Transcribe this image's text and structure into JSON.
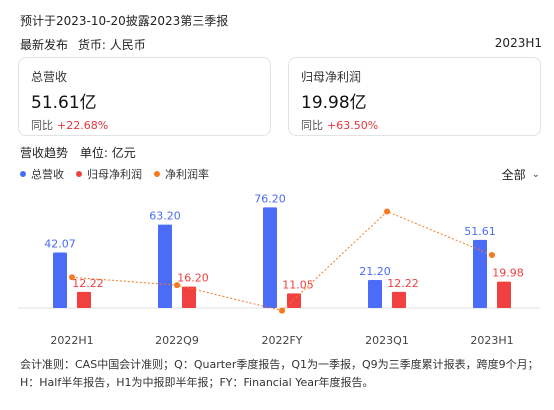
{
  "header": {
    "title": "预计于2023-10-20披露2023第三季报",
    "release_label": "最新发布",
    "currency_label": "货币: 人民币",
    "period": "2023H1"
  },
  "cards": [
    {
      "label": "总营收",
      "value": "51.61亿",
      "yoy_label": "同比",
      "yoy": "+22.68%"
    },
    {
      "label": "归母净利润",
      "value": "19.98亿",
      "yoy_label": "同比",
      "yoy": "+63.50%"
    }
  ],
  "trend": {
    "title": "营收趋势",
    "unit_label": "单位: 亿元",
    "filter": "全部"
  },
  "colors": {
    "revenue": "#4a6cf7",
    "profit": "#f04040",
    "margin": "#f57a1f",
    "text": "#222222"
  },
  "chart_data": {
    "type": "bar",
    "categories": [
      "2022H1",
      "2022Q9",
      "2022FY",
      "2023Q1",
      "2023H1"
    ],
    "series": [
      {
        "name": "总营收",
        "kind": "bar",
        "values": [
          42.07,
          63.2,
          76.2,
          21.2,
          51.61
        ]
      },
      {
        "name": "归母净利润",
        "kind": "bar",
        "values": [
          12.22,
          16.2,
          11.05,
          12.22,
          19.98
        ]
      },
      {
        "name": "净利润率",
        "kind": "line",
        "style": "dotted",
        "values": [
          29.0,
          25.6,
          14.5,
          57.6,
          38.7
        ]
      }
    ],
    "data_labels": true,
    "legend_position": "top-left"
  },
  "footnote": "会计准则：CAS中国会计准则；Q：Quarter季度报告，Q1为一季报，Q9为三季度累计报表，跨度9个月；H：Half半年报告，H1为中报即半年报；FY：Financial Year年度报告。"
}
